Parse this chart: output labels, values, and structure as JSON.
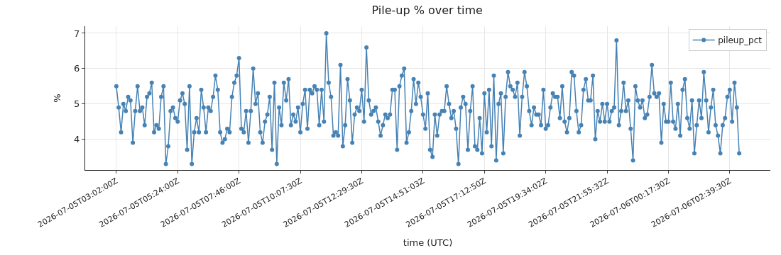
{
  "chart_data": {
    "type": "line",
    "title": "Pile-up % over time",
    "xlabel": "time (UTC)",
    "ylabel": "%",
    "categories": [
      "2026-07-05T03:02:00Z",
      null,
      null,
      null,
      null,
      null,
      null,
      null,
      null,
      null,
      null,
      null,
      null,
      null,
      null,
      null,
      null,
      null,
      null,
      null,
      null,
      null,
      null,
      null,
      null,
      null,
      "2026-07-05T05:24:00Z",
      null,
      null,
      null,
      null,
      null,
      null,
      null,
      null,
      null,
      null,
      null,
      null,
      null,
      null,
      null,
      null,
      null,
      null,
      null,
      null,
      null,
      null,
      null,
      null,
      null,
      "2026-07-05T07:46:00Z",
      null,
      null,
      null,
      null,
      null,
      null,
      null,
      null,
      null,
      null,
      null,
      null,
      null,
      null,
      null,
      null,
      null,
      null,
      null,
      null,
      null,
      null,
      null,
      null,
      null,
      "2026-07-05T10:07:30Z",
      null,
      null,
      null,
      null,
      null,
      null,
      null,
      null,
      null,
      null,
      null,
      null,
      null,
      null,
      null,
      null,
      null,
      null,
      null,
      null,
      null,
      null,
      null,
      null,
      null,
      "2026-07-05T12:29:30Z",
      null,
      null,
      null,
      null,
      null,
      null,
      null,
      null,
      null,
      null,
      null,
      null,
      null,
      null,
      null,
      null,
      null,
      null,
      null,
      null,
      null,
      null,
      null,
      null,
      null,
      "2026-07-05T14:51:03Z",
      null,
      null,
      null,
      null,
      null,
      null,
      null,
      null,
      null,
      null,
      null,
      null,
      null,
      null,
      null,
      null,
      null,
      null,
      null,
      null,
      null,
      null,
      null,
      null,
      null,
      "2026-07-05T17:12:50Z",
      null,
      null,
      null,
      null,
      null,
      null,
      null,
      null,
      null,
      null,
      null,
      null,
      null,
      null,
      null,
      null,
      null,
      null,
      null,
      null,
      null,
      null,
      null,
      null,
      null,
      "2026-07-05T19:34:02Z",
      null,
      null,
      null,
      null,
      null,
      null,
      null,
      null,
      null,
      null,
      null,
      null,
      null,
      null,
      null,
      null,
      null,
      null,
      null,
      null,
      null,
      null,
      null,
      null,
      null,
      "2026-07-05T21:55:32Z",
      null,
      null,
      null,
      null,
      null,
      null,
      null,
      null,
      null,
      null,
      null,
      null,
      null,
      null,
      null,
      null,
      null,
      null,
      null,
      null,
      null,
      null,
      null,
      null,
      null,
      "2026-07-06T00:17:30Z",
      null,
      null,
      null,
      null,
      null,
      null,
      null,
      null,
      null,
      null,
      null,
      null,
      null,
      null,
      null,
      null,
      null,
      null,
      null,
      null,
      null,
      null,
      null,
      null,
      null,
      "2026-07-06T02:39:30Z",
      null,
      null,
      null,
      null
    ],
    "series": [
      {
        "name": "pileup_pct",
        "color": "#4682b4",
        "values": [
          5.5,
          4.9,
          4.2,
          5.0,
          4.8,
          5.2,
          5.1,
          3.9,
          4.8,
          5.5,
          4.8,
          4.9,
          4.4,
          5.2,
          5.3,
          5.6,
          4.2,
          4.4,
          4.3,
          5.2,
          5.5,
          3.3,
          3.8,
          4.8,
          4.9,
          4.6,
          4.5,
          5.1,
          5.3,
          5.0,
          3.7,
          5.5,
          3.3,
          4.2,
          4.6,
          4.2,
          5.4,
          4.9,
          4.2,
          4.9,
          4.8,
          5.2,
          5.8,
          5.4,
          4.2,
          3.9,
          4.0,
          4.3,
          4.2,
          5.2,
          5.6,
          5.8,
          6.3,
          4.3,
          4.2,
          4.8,
          3.9,
          4.8,
          6.0,
          5.0,
          5.3,
          4.2,
          3.9,
          4.5,
          4.7,
          5.2,
          3.7,
          5.6,
          3.3,
          4.9,
          4.4,
          5.6,
          5.1,
          5.7,
          4.4,
          4.7,
          4.5,
          4.9,
          4.2,
          5.0,
          5.4,
          4.3,
          5.4,
          5.3,
          5.5,
          5.4,
          4.4,
          5.4,
          4.5,
          7.0,
          5.6,
          5.2,
          4.1,
          4.2,
          4.1,
          6.1,
          3.8,
          4.4,
          5.7,
          5.1,
          3.9,
          4.7,
          4.9,
          4.8,
          5.4,
          4.5,
          6.6,
          5.1,
          4.7,
          4.8,
          4.9,
          4.5,
          4.1,
          4.4,
          4.7,
          4.6,
          4.7,
          5.4,
          5.4,
          3.7,
          5.5,
          5.8,
          6.0,
          3.9,
          4.2,
          4.8,
          5.7,
          5.0,
          5.6,
          5.2,
          4.7,
          4.3,
          5.3,
          3.7,
          3.5,
          4.7,
          4.1,
          4.7,
          4.8,
          4.8,
          5.5,
          5.0,
          4.6,
          4.8,
          4.3,
          3.3,
          4.9,
          5.2,
          5.0,
          3.7,
          4.8,
          5.5,
          3.8,
          3.7,
          4.6,
          3.6,
          5.3,
          4.2,
          5.4,
          3.8,
          5.8,
          3.4,
          5.0,
          5.3,
          3.6,
          5.2,
          5.9,
          5.5,
          5.4,
          5.2,
          5.6,
          4.1,
          5.2,
          5.9,
          5.5,
          4.8,
          4.4,
          4.9,
          4.7,
          4.7,
          4.4,
          5.4,
          4.3,
          4.4,
          4.9,
          5.3,
          5.2,
          5.2,
          4.6,
          5.5,
          4.5,
          4.2,
          4.6,
          5.9,
          5.8,
          4.8,
          4.2,
          4.4,
          5.4,
          5.7,
          5.1,
          5.1,
          5.8,
          4.0,
          4.8,
          4.5,
          5.0,
          4.5,
          5.0,
          4.5,
          4.8,
          4.9,
          6.8,
          4.4,
          4.8,
          5.6,
          4.8,
          5.1,
          4.3,
          3.4,
          5.5,
          5.1,
          4.9,
          5.1,
          4.6,
          4.7,
          5.2,
          6.1,
          5.3,
          5.2,
          5.3,
          3.9,
          5.0,
          4.5,
          4.5,
          5.6,
          4.5,
          4.3,
          5.0,
          4.1,
          5.4,
          5.7,
          4.6,
          4.3,
          5.1,
          3.6,
          4.4,
          5.1,
          4.6,
          5.9,
          5.1,
          4.2,
          4.9,
          5.4,
          4.4,
          4.1,
          3.6,
          4.4,
          4.6,
          5.2,
          5.4,
          4.5,
          5.6,
          4.9,
          3.6
        ]
      }
    ],
    "ylim": [
      3.13,
      7.2
    ],
    "yticks": [
      4,
      5,
      6,
      7
    ],
    "grid": true,
    "legend": "top right",
    "marker": "circle",
    "line_style": "solid"
  }
}
